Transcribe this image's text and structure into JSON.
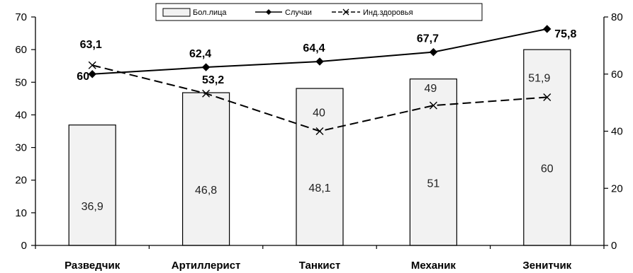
{
  "chart_data": {
    "type": "bar",
    "categories": [
      "Разведчик",
      "Артиллерист",
      "Танкист",
      "Механик",
      "Зенитчик"
    ],
    "series": [
      {
        "name": "Бол.лица",
        "type": "bar",
        "axis": "left",
        "values": [
          36.9,
          46.8,
          48.1,
          51,
          60
        ],
        "value_labels": [
          "36,9",
          "46,8",
          "48,1",
          "51",
          "60"
        ]
      },
      {
        "name": "Случаи",
        "type": "line",
        "style": "solid",
        "marker": "diamond",
        "axis": "right",
        "values": [
          60,
          62.4,
          64.4,
          67.7,
          75.8
        ],
        "value_labels": [
          "60",
          "62,4",
          "64,4",
          "67,7",
          "75,8"
        ]
      },
      {
        "name": "Инд.здоровья",
        "type": "line",
        "style": "dashed",
        "marker": "x",
        "axis": "right",
        "values": [
          63.1,
          53.2,
          40,
          49,
          51.9
        ],
        "value_labels": [
          "63,1",
          "53,2",
          "40",
          "49",
          "51,9"
        ]
      }
    ],
    "y_left": {
      "ylim": [
        0,
        70
      ],
      "ticks": [
        0,
        10,
        20,
        30,
        40,
        50,
        60,
        70
      ]
    },
    "y_right": {
      "ylim": [
        0,
        80
      ],
      "ticks": [
        0,
        20,
        40,
        60,
        80
      ]
    },
    "legend": {
      "placement": "top-center"
    },
    "grid": false,
    "colors": {
      "bar_fill": "#f2f2f2",
      "bar_stroke": "#000000",
      "line": "#000000"
    }
  }
}
